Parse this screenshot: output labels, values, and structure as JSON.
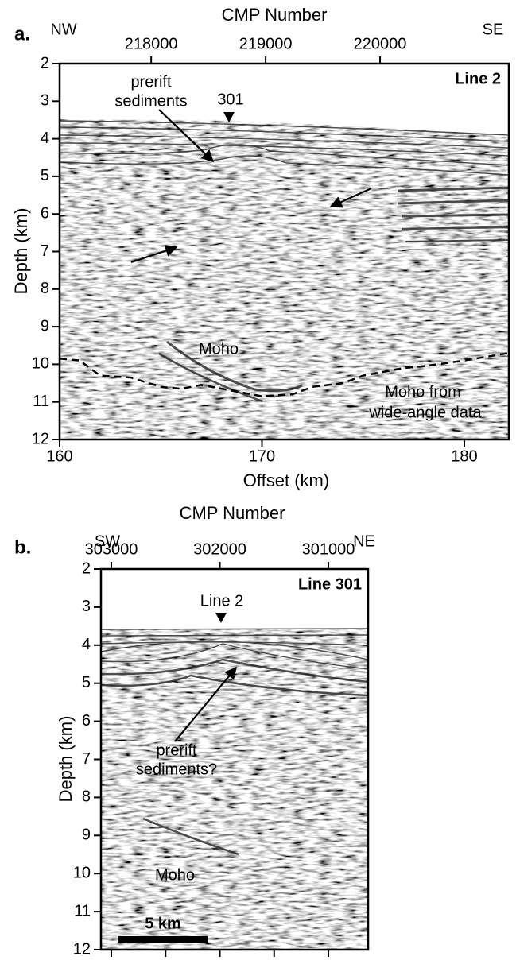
{
  "chart_data": [
    {
      "type": "seismic-section",
      "panel_label": "a.",
      "x2_label": "CMP Number",
      "x2_left_label": "NW",
      "x2_right_label": "SE",
      "x_label": "Offset (km)",
      "y_label": "Depth (km)",
      "line_label": "Line 2",
      "crossing_label": "301",
      "annotations": [
        {
          "lines": [
            "prerift",
            "sediments"
          ]
        },
        {
          "lines": [
            "Moho"
          ]
        },
        {
          "lines": [
            "Moho from",
            "wide-angle data"
          ]
        }
      ],
      "xlim": [
        160,
        182.2
      ],
      "xticks": [
        160,
        170,
        180
      ],
      "x2lim": [
        217200,
        221125
      ],
      "x2ticks": [
        218000,
        219000,
        220000
      ],
      "ylim": [
        12,
        2
      ],
      "yticks": [
        2,
        3,
        4,
        5,
        6,
        7,
        8,
        9,
        10,
        11,
        12
      ],
      "moho_wide_angle": {
        "offset": [
          160,
          161,
          162,
          163.5,
          165,
          166,
          167,
          168.5,
          170,
          171.5,
          172.5,
          174,
          175,
          176,
          177,
          178,
          180,
          182.2
        ],
        "depth": [
          9.85,
          9.9,
          10.3,
          10.35,
          10.6,
          10.65,
          10.55,
          10.7,
          10.85,
          10.8,
          10.6,
          10.5,
          10.3,
          10.2,
          10.1,
          10.05,
          9.9,
          9.7
        ]
      }
    },
    {
      "type": "seismic-section",
      "panel_label": "b.",
      "x2_label": "CMP Number",
      "x2_left_label": "SW",
      "x2_right_label": "NE",
      "y_label": "Depth (km)",
      "line_label": "Line 301",
      "crossing_label": "Line 2",
      "annotations": [
        {
          "lines": [
            "prerift",
            "sediments?"
          ]
        },
        {
          "lines": [
            "Moho"
          ]
        }
      ],
      "scale_bar_label": "5 km",
      "x2lim": [
        303095,
        300634
      ],
      "x2ticks": [
        303000,
        302000,
        301000
      ],
      "x_minor_ticks": [
        303000,
        302500,
        302000,
        301500,
        301000
      ],
      "ylim": [
        12,
        2
      ],
      "yticks": [
        2,
        3,
        4,
        5,
        6,
        7,
        8,
        9,
        10,
        11,
        12
      ]
    }
  ]
}
